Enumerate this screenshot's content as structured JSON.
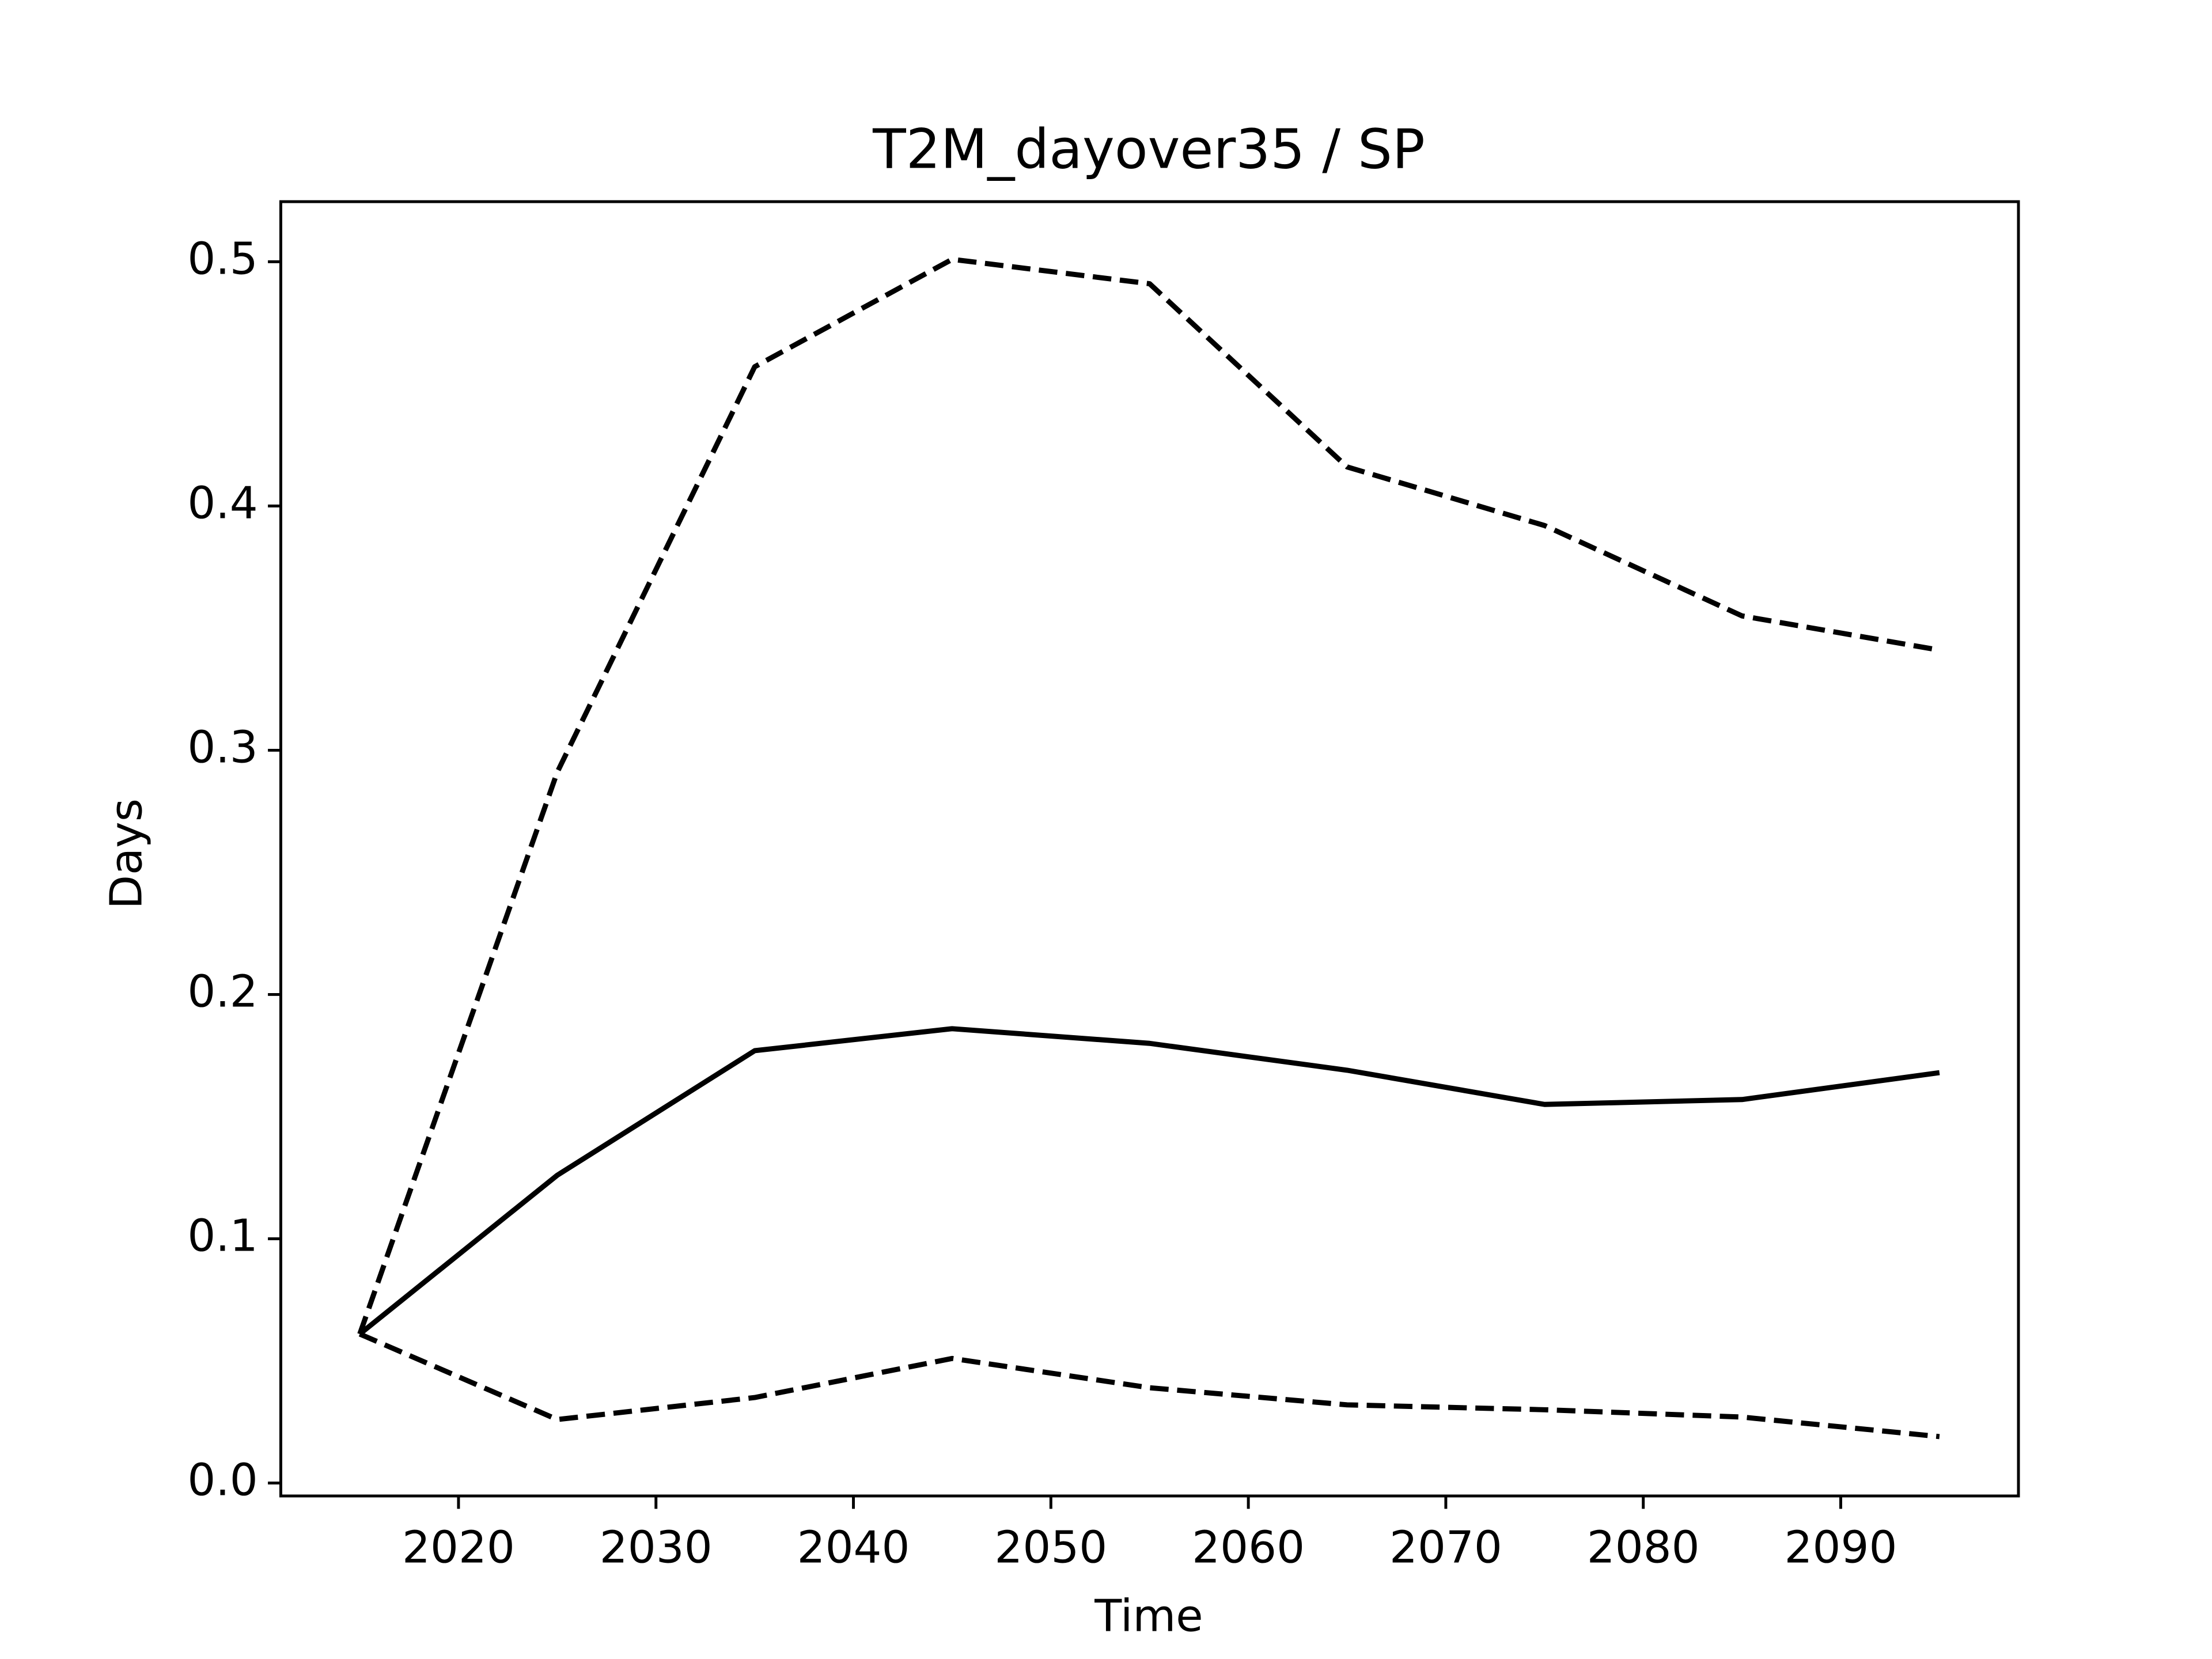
{
  "chart_data": {
    "type": "line",
    "title": "T2M_dayover35 / SP",
    "xlabel": "Time",
    "ylabel": "Days",
    "x": [
      2015,
      2025,
      2035,
      2045,
      2055,
      2065,
      2075,
      2085,
      2095
    ],
    "series": [
      {
        "color": "#000000",
        "style": "solid",
        "values": [
          0.061,
          0.126,
          0.177,
          0.186,
          0.18,
          0.169,
          0.155,
          0.157,
          0.168
        ]
      },
      {
        "color": "#000000",
        "style": "dashed",
        "values": [
          0.061,
          0.291,
          0.457,
          0.501,
          0.491,
          0.416,
          0.392,
          0.355,
          0.341
        ]
      },
      {
        "color": "#000000",
        "style": "dashed",
        "values": [
          0.061,
          0.026,
          0.035,
          0.051,
          0.039,
          0.032,
          0.03,
          0.027,
          0.019
        ]
      }
    ],
    "xlim": [
      2011,
      2099
    ],
    "xticks": [
      2020,
      2030,
      2040,
      2050,
      2060,
      2070,
      2080,
      2090
    ],
    "ylim": [
      -0.0053,
      0.5246
    ],
    "yticks": [
      {
        "value": 0,
        "label": "0.0"
      },
      0.1,
      0.2,
      0.3,
      0.4,
      0.5
    ],
    "grid": false
  }
}
